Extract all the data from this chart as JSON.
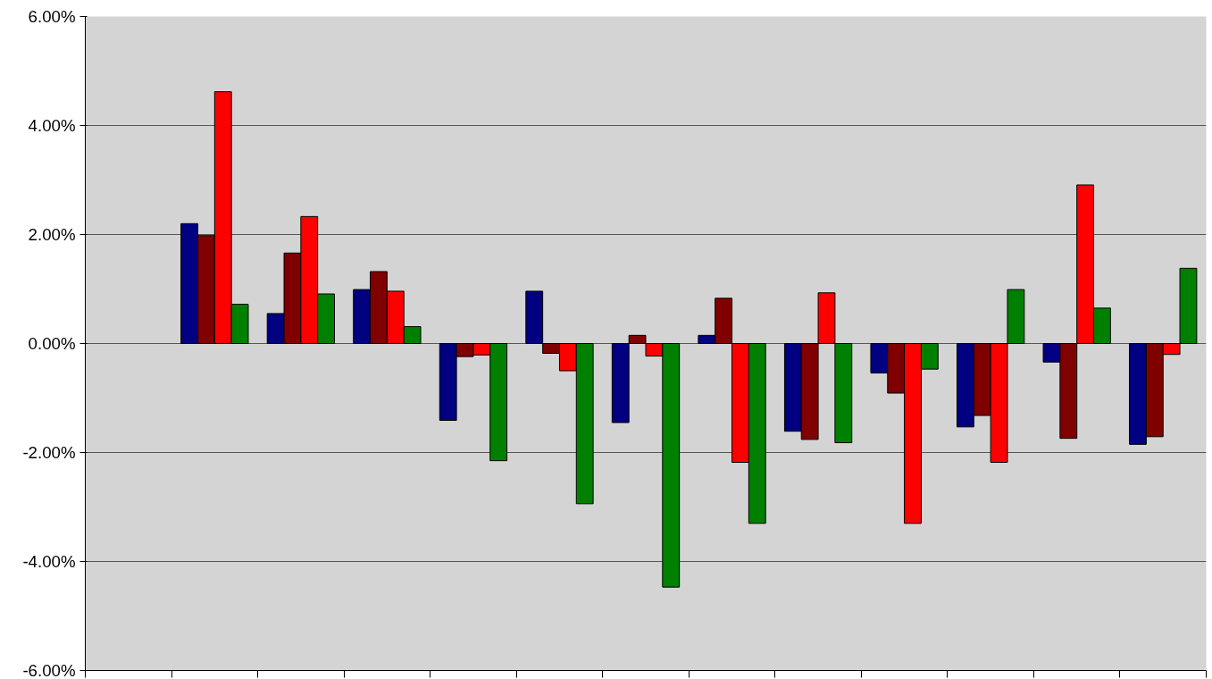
{
  "chart_data": {
    "type": "bar",
    "categories": [
      null,
      null,
      null,
      null,
      null,
      null,
      null,
      null,
      null,
      null,
      null,
      null,
      null
    ],
    "series": [
      {
        "color": "#000080",
        "values": [
          null,
          2.2,
          0.55,
          0.99,
          -1.41,
          0.96,
          -1.45,
          0.15,
          -1.61,
          -0.54,
          -1.53,
          -0.34,
          -1.85
        ]
      },
      {
        "color": "#800000",
        "values": [
          null,
          1.98,
          1.66,
          1.32,
          -0.24,
          -0.18,
          0.15,
          0.83,
          -1.76,
          -0.91,
          -1.32,
          -1.74,
          -1.71
        ]
      },
      {
        "color": "#ff0000",
        "values": [
          null,
          4.62,
          2.33,
          0.96,
          -0.21,
          -0.5,
          -0.23,
          -2.18,
          0.93,
          -3.3,
          -2.18,
          2.91,
          -0.2
        ]
      },
      {
        "color": "#008000",
        "values": [
          null,
          0.72,
          0.91,
          0.31,
          -2.15,
          -2.94,
          -4.47,
          -3.3,
          -1.82,
          -0.47,
          0.99,
          0.65,
          1.38
        ]
      }
    ],
    "ylim": [
      -6,
      6
    ],
    "yticks": [
      {
        "value": -6,
        "label": "-6.00%"
      },
      {
        "value": -4,
        "label": "-4.00%"
      },
      {
        "value": -2,
        "label": "-2.00%"
      },
      {
        "value": 0,
        "label": "0.00%"
      },
      {
        "value": 2,
        "label": "2.00%"
      },
      {
        "value": 4,
        "label": "4.00%"
      },
      {
        "value": 6,
        "label": "6.00%"
      }
    ],
    "grid": "y",
    "tick_labels": "y"
  }
}
